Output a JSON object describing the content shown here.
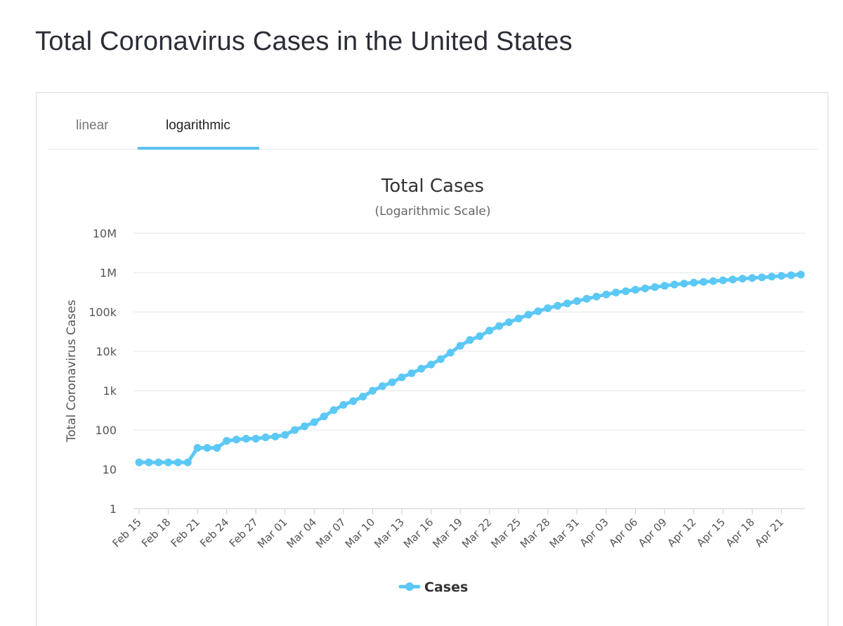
{
  "page": {
    "title": "Total Coronavirus Cases in the United States"
  },
  "tabs": [
    {
      "label": "linear",
      "active": false
    },
    {
      "label": "logarithmic",
      "active": true
    }
  ],
  "colors": {
    "accent": "#5bc8f5",
    "grid": "#e6e6e6",
    "text": "#333333",
    "axis_text": "#555555"
  },
  "chart_data": {
    "type": "line",
    "title": "Total Cases",
    "subtitle": "(Logarithmic Scale)",
    "ylabel": "Total Coronavirus Cases",
    "xlabel": "",
    "yscale": "log",
    "ylim": [
      1,
      10000000
    ],
    "yticks": [
      {
        "value": 1,
        "label": "1"
      },
      {
        "value": 10,
        "label": "10"
      },
      {
        "value": 100,
        "label": "100"
      },
      {
        "value": 1000,
        "label": "1k"
      },
      {
        "value": 10000,
        "label": "10k"
      },
      {
        "value": 100000,
        "label": "100k"
      },
      {
        "value": 1000000,
        "label": "1M"
      },
      {
        "value": 10000000,
        "label": "10M"
      }
    ],
    "grid": true,
    "legend_position": "bottom-center",
    "xtick_labels": [
      "Feb 15",
      "Feb 18",
      "Feb 21",
      "Feb 24",
      "Feb 27",
      "Mar 01",
      "Mar 04",
      "Mar 07",
      "Mar 10",
      "Mar 13",
      "Mar 16",
      "Mar 19",
      "Mar 22",
      "Mar 25",
      "Mar 28",
      "Mar 31",
      "Apr 03",
      "Apr 06",
      "Apr 09",
      "Apr 12",
      "Apr 15",
      "Apr 18",
      "Apr 21"
    ],
    "categories": [
      "Feb 15",
      "Feb 16",
      "Feb 17",
      "Feb 18",
      "Feb 19",
      "Feb 20",
      "Feb 21",
      "Feb 22",
      "Feb 23",
      "Feb 24",
      "Feb 25",
      "Feb 26",
      "Feb 27",
      "Feb 28",
      "Feb 29",
      "Mar 01",
      "Mar 02",
      "Mar 03",
      "Mar 04",
      "Mar 05",
      "Mar 06",
      "Mar 07",
      "Mar 08",
      "Mar 09",
      "Mar 10",
      "Mar 11",
      "Mar 12",
      "Mar 13",
      "Mar 14",
      "Mar 15",
      "Mar 16",
      "Mar 17",
      "Mar 18",
      "Mar 19",
      "Mar 20",
      "Mar 21",
      "Mar 22",
      "Mar 23",
      "Mar 24",
      "Mar 25",
      "Mar 26",
      "Mar 27",
      "Mar 28",
      "Mar 29",
      "Mar 30",
      "Mar 31",
      "Apr 01",
      "Apr 02",
      "Apr 03",
      "Apr 04",
      "Apr 05",
      "Apr 06",
      "Apr 07",
      "Apr 08",
      "Apr 09",
      "Apr 10",
      "Apr 11",
      "Apr 12",
      "Apr 13",
      "Apr 14",
      "Apr 15",
      "Apr 16",
      "Apr 17",
      "Apr 18",
      "Apr 19",
      "Apr 20",
      "Apr 21",
      "Apr 22",
      "Apr 23"
    ],
    "series": [
      {
        "name": "Cases",
        "color": "#5bc8f5",
        "values": [
          15,
          15,
          15,
          15,
          15,
          15,
          35,
          35,
          35,
          53,
          57,
          60,
          60,
          65,
          68,
          75,
          100,
          124,
          158,
          221,
          319,
          435,
          541,
          704,
          994,
          1301,
          1630,
          2183,
          2770,
          3613,
          4596,
          6344,
          9197,
          13779,
          19367,
          24192,
          33592,
          43781,
          54856,
          68211,
          85435,
          104126,
          124686,
          143025,
          164620,
          189618,
          216722,
          245540,
          277965,
          312245,
          337072,
          366667,
          396223,
          429052,
          461437,
          496535,
          526396,
          555313,
          580619,
          607670,
          636350,
          667801,
          700282,
          732197,
          759086,
          787960,
          825306,
          856209,
          890524
        ]
      }
    ]
  }
}
